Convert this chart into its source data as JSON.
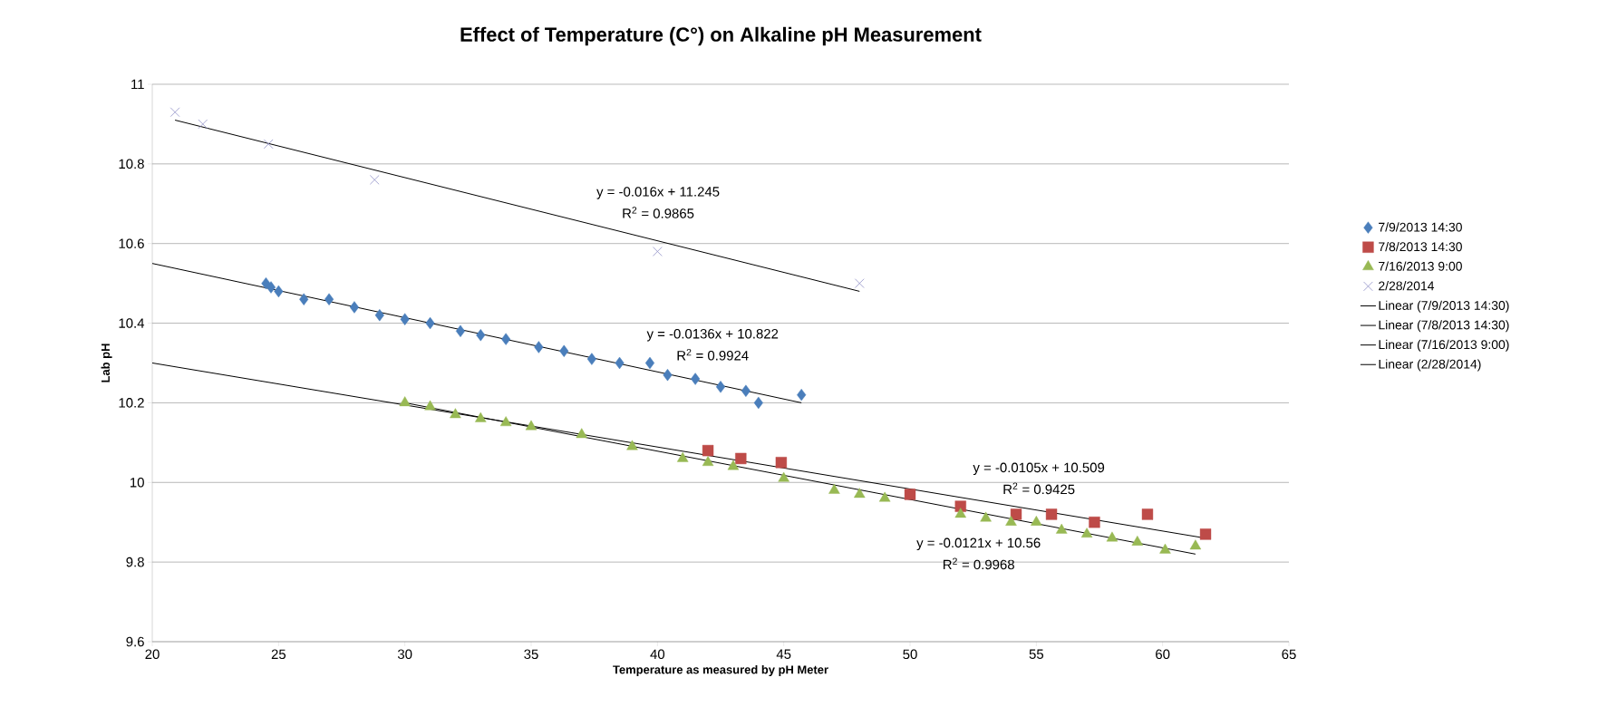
{
  "chart_data": {
    "type": "scatter",
    "title": "Effect of Temperature (C°) on Alkaline pH Measurement",
    "xlabel": "Temperature as measured by pH Meter",
    "ylabel": "Lab pH",
    "xlim": [
      20,
      65
    ],
    "xticks": [
      20,
      25,
      30,
      35,
      40,
      45,
      50,
      55,
      60,
      65
    ],
    "ylim": [
      9.6,
      11
    ],
    "yticks": [
      9.6,
      9.8,
      10,
      10.2,
      10.4,
      10.6,
      10.8,
      11
    ],
    "grid": "y",
    "legend": "right",
    "series": [
      {
        "name": "7/9/2013 14:30",
        "color": "#4a7ebb",
        "marker": "diamond",
        "x": [
          24.5,
          24.7,
          25,
          26,
          27,
          28,
          29,
          30,
          31,
          32.2,
          33,
          34,
          35.3,
          36.3,
          37.4,
          38.5,
          39.7,
          40.4,
          41.5,
          42.5,
          43.5,
          44,
          45.7
        ],
        "values": [
          10.5,
          10.49,
          10.48,
          10.46,
          10.46,
          10.44,
          10.42,
          10.41,
          10.4,
          10.38,
          10.37,
          10.36,
          10.34,
          10.33,
          10.31,
          10.3,
          10.3,
          10.27,
          10.26,
          10.24,
          10.23,
          10.2,
          10.22
        ]
      },
      {
        "name": "7/8/2013 14:30",
        "color": "#be4b48",
        "marker": "square",
        "x": [
          42,
          43.3,
          44.9,
          50,
          52,
          54.2,
          55.6,
          57.3,
          59.4,
          61.7
        ],
        "values": [
          10.08,
          10.06,
          10.05,
          9.97,
          9.94,
          9.92,
          9.92,
          9.9,
          9.92,
          9.87
        ]
      },
      {
        "name": "7/16/2013 9:00",
        "color": "#98b954",
        "marker": "triangle",
        "x": [
          30,
          31,
          32,
          33,
          34,
          35,
          37,
          39,
          41,
          42,
          43,
          45,
          47,
          48,
          49,
          52,
          53,
          54,
          55,
          56,
          57,
          58,
          59,
          60.1,
          61.3
        ],
        "values": [
          10.2,
          10.19,
          10.17,
          10.16,
          10.15,
          10.14,
          10.12,
          10.09,
          10.06,
          10.05,
          10.04,
          10.01,
          9.98,
          9.97,
          9.96,
          9.92,
          9.91,
          9.9,
          9.9,
          9.88,
          9.87,
          9.86,
          9.85,
          9.83,
          9.84
        ]
      },
      {
        "name": "2/28/2014",
        "color": "#9090c8",
        "marker": "cross",
        "x": [
          20.9,
          22,
          24.6,
          28.8,
          40,
          48
        ],
        "values": [
          10.93,
          10.9,
          10.85,
          10.76,
          10.58,
          10.5
        ]
      },
      {
        "name": "Linear (7/9/2013 14:30)",
        "type": "line",
        "color": "#000000",
        "marker": "none",
        "line_style": "solid",
        "x": [
          20,
          45.7
        ],
        "values": [
          10.55,
          10.2
        ]
      },
      {
        "name": "Linear (7/8/2013 14:30)",
        "type": "line",
        "color": "#000000",
        "marker": "none",
        "line_style": "solid",
        "x": [
          20,
          61.7
        ],
        "values": [
          10.3,
          9.86
        ]
      },
      {
        "name": "Linear (7/16/2013 9:00)",
        "type": "line",
        "color": "#000000",
        "marker": "none",
        "line_style": "solid",
        "x": [
          30,
          61.3
        ],
        "values": [
          10.2,
          9.82
        ]
      },
      {
        "name": "Linear (2/28/2014)",
        "type": "line",
        "color": "#000000",
        "marker": "none",
        "line_style": "solid",
        "x": [
          20.9,
          48
        ],
        "values": [
          10.91,
          10.48
        ]
      }
    ],
    "annotations": [
      "y = -0.016x + 11.245",
      "R$^{2}$ = 0.9865",
      "y = -0.0136x + 10.822",
      "R$^{2}$ = 0.9924",
      "y = -0.0105x + 10.509",
      "R$^{2}$ = 0.9425",
      "y = -0.0121x + 10.56",
      "R$^{2}$ = 0.9968"
    ]
  }
}
